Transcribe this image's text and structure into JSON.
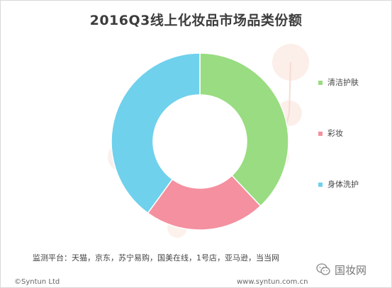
{
  "chart_data": {
    "type": "donut",
    "title": "2016Q3线上化妆品市场品类份额",
    "categories": [
      "清洁护肤",
      "彩妆",
      "身体洗护"
    ],
    "values": [
      38,
      22,
      40
    ],
    "colors": [
      "#99dc81",
      "#f4909f",
      "#6fd1ec"
    ],
    "legend_position": "right"
  },
  "footer": {
    "source": "监测平台：天猫，京东，苏宁易购，国美在线，1号店，亚马逊，当当网",
    "copyright": "©Syntun Ltd",
    "site": "www.syntun.com.cn"
  },
  "watermark": {
    "icon": "wechat-icon",
    "text": "国妆网"
  }
}
